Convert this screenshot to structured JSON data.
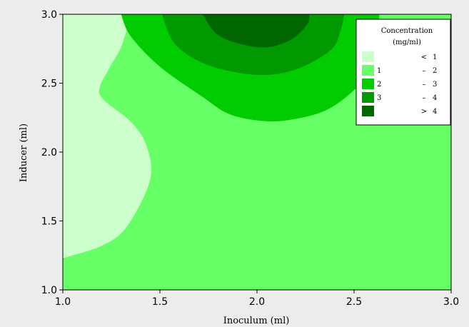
{
  "chart_data": {
    "type": "contour",
    "xlabel": "Inoculum (ml)",
    "ylabel": "Inducer (ml)",
    "xlim": [
      1.0,
      3.0
    ],
    "ylim": [
      1.0,
      3.0
    ],
    "x_ticks": [
      "1.0",
      "1.5",
      "2.0",
      "2.5",
      "3.0"
    ],
    "y_ticks": [
      "1.0",
      "1.5",
      "2.0",
      "2.5",
      "3.0"
    ],
    "grid": false,
    "legend": {
      "title_line1": "Concentration",
      "title_line2": "(mg/ml)",
      "placement": "top-right",
      "entries": [
        {
          "low": "",
          "op": "<",
          "high": "1",
          "color": "#ccffcc"
        },
        {
          "low": "1",
          "op": "–",
          "high": "2",
          "color": "#66ff66"
        },
        {
          "low": "2",
          "op": "–",
          "high": "3",
          "color": "#00cc00"
        },
        {
          "low": "3",
          "op": "–",
          "high": "4",
          "color": "#009900"
        },
        {
          "low": "",
          "op": ">",
          "high": "4",
          "color": "#006600"
        }
      ]
    },
    "regions": [
      {
        "level": "< 1",
        "color": "#ccffcc",
        "boundary": [
          [
            1.0,
            1.23
          ],
          [
            1.2,
            1.32
          ],
          [
            1.33,
            1.46
          ],
          [
            1.45,
            1.8
          ],
          [
            1.43,
            2.05
          ],
          [
            1.35,
            2.22
          ],
          [
            1.21,
            2.38
          ],
          [
            1.19,
            2.47
          ],
          [
            1.24,
            2.61
          ],
          [
            1.31,
            2.8
          ],
          [
            1.31,
            3.0
          ],
          [
            1.0,
            3.0
          ]
        ]
      },
      {
        "level": "2 – 3",
        "color": "#00cc00",
        "boundary": [
          [
            1.3,
            3.0
          ],
          [
            1.35,
            2.84
          ],
          [
            1.5,
            2.62
          ],
          [
            1.72,
            2.4
          ],
          [
            1.85,
            2.28
          ],
          [
            2.0,
            2.23
          ],
          [
            2.15,
            2.23
          ],
          [
            2.35,
            2.3
          ],
          [
            2.5,
            2.45
          ],
          [
            2.58,
            2.6
          ],
          [
            2.62,
            2.75
          ],
          [
            2.63,
            3.0
          ]
        ]
      },
      {
        "level": "3 – 4",
        "color": "#009900",
        "boundary": [
          [
            1.51,
            3.0
          ],
          [
            1.58,
            2.78
          ],
          [
            1.75,
            2.63
          ],
          [
            2.0,
            2.56
          ],
          [
            2.2,
            2.6
          ],
          [
            2.38,
            2.74
          ],
          [
            2.43,
            2.88
          ],
          [
            2.45,
            3.0
          ]
        ]
      },
      {
        "level": "> 4",
        "color": "#006600",
        "boundary": [
          [
            1.72,
            3.0
          ],
          [
            1.79,
            2.86
          ],
          [
            1.9,
            2.79
          ],
          [
            2.05,
            2.76
          ],
          [
            2.18,
            2.82
          ],
          [
            2.26,
            2.93
          ],
          [
            2.27,
            3.0
          ]
        ]
      }
    ],
    "base_level": {
      "level": "1 – 2",
      "color": "#66ff66"
    }
  }
}
